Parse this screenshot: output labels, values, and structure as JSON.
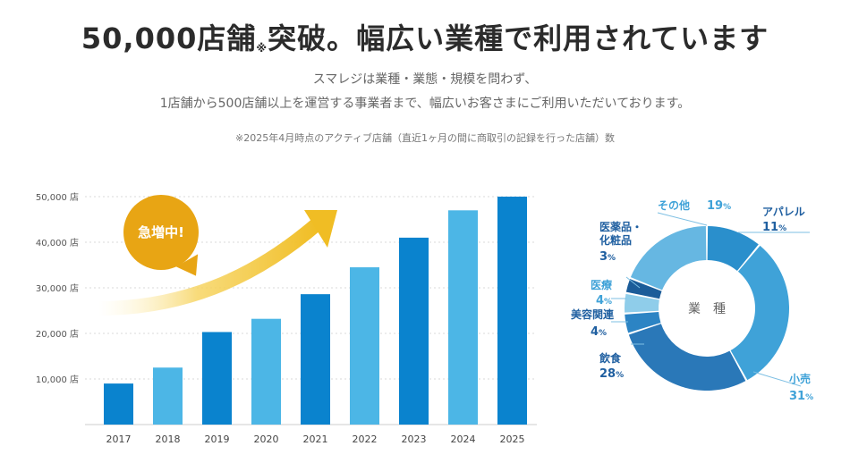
{
  "header": {
    "title_main": "50,000店舗",
    "title_note": "※",
    "title_rest": "突破。幅広い業種で利用されています",
    "subtitle_line1": "スマレジは業種・業態・規模を問わず、",
    "subtitle_line2": "1店舗から500店舗以上を運営する事業者まで、幅広いお客さまにご利用いただいております。",
    "footnote": "※2025年4月時点のアクティブ店舗（直近1ヶ月の間に商取引の記録を行った店舗）数"
  },
  "badge": {
    "label": "急増中!"
  },
  "colors": {
    "bar_dark": "#0a83ce",
    "bar_light": "#4cb6e6",
    "arrow": "#f0bd24",
    "badge": "#e8a514"
  },
  "chart_data": [
    {
      "type": "bar",
      "categories": [
        "2017",
        "2018",
        "2019",
        "2020",
        "2021",
        "2022",
        "2023",
        "2024",
        "2025"
      ],
      "values": [
        9000,
        12500,
        20300,
        23200,
        28600,
        34500,
        41000,
        47000,
        50000
      ],
      "ylim": [
        0,
        50000
      ],
      "yticks": [
        "10,000 店",
        "20,000 店",
        "30,000 店",
        "40,000 店",
        "50,000 店"
      ],
      "ytick_values": [
        10000,
        20000,
        30000,
        40000,
        50000
      ],
      "grid": true
    },
    {
      "type": "pie",
      "center_label": "業　種",
      "slices": [
        {
          "label": "アパレル",
          "value": 11,
          "pct": "11%",
          "color": "#2a8fcc"
        },
        {
          "label": "小売",
          "value": 31,
          "pct": "31%",
          "color": "#3fa2d8"
        },
        {
          "label": "飲食",
          "value": 28,
          "pct": "28%",
          "color": "#2a78b8"
        },
        {
          "label": "美容関連",
          "value": 4,
          "pct": "4%",
          "color": "#2c84c4"
        },
        {
          "label": "医療",
          "value": 4,
          "pct": "4%",
          "color": "#8fcdea"
        },
        {
          "label": "医薬品・化粧品",
          "value": 3,
          "pct": "3%",
          "color": "#1b5c99"
        },
        {
          "label": "その他",
          "value": 19,
          "pct": "19%",
          "color": "#66b7e2"
        }
      ]
    }
  ]
}
